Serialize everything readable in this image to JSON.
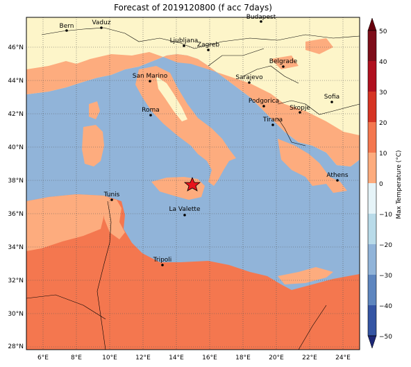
{
  "title": "Forecast of 2019120800 (f acc 7days)",
  "map": {
    "lon_ticks": [
      "6°E",
      "8°E",
      "10°E",
      "12°E",
      "14°E",
      "16°E",
      "18°E",
      "20°E",
      "22°E",
      "24°E"
    ],
    "lat_ticks": [
      "46°N",
      "44°N",
      "42°N",
      "40°N",
      "38°N",
      "36°N",
      "34°N",
      "32°N",
      "30°N",
      "28°N"
    ],
    "colors": {
      "sea": "#91b4d9",
      "land_0_10": "#fdf5c9",
      "land_10_20": "#fdac7e",
      "land_20_30": "#f4774f"
    },
    "cities": [
      {
        "name": "Bern"
      },
      {
        "name": "Vaduz"
      },
      {
        "name": "Budapest"
      },
      {
        "name": "Ljubljana"
      },
      {
        "name": "Zagreb"
      },
      {
        "name": "Belgrade"
      },
      {
        "name": "San Marino"
      },
      {
        "name": "Sarajevo"
      },
      {
        "name": "Sofia"
      },
      {
        "name": "Podgorica"
      },
      {
        "name": "Skopje"
      },
      {
        "name": "Roma"
      },
      {
        "name": "Tirana"
      },
      {
        "name": "Athens"
      },
      {
        "name": "Tunis"
      },
      {
        "name": "La Valette"
      },
      {
        "name": "Tripoli"
      }
    ],
    "marker": {
      "type": "star",
      "color": "#e8131b"
    }
  },
  "colorbar": {
    "label": "Max Temperature (°C)",
    "ticks": [
      "50",
      "40",
      "30",
      "20",
      "10",
      "0",
      "−10",
      "−20",
      "−30",
      "−40",
      "−50"
    ],
    "colors": [
      "#7e0d1a",
      "#b0101f",
      "#d63424",
      "#f4774f",
      "#fdac7e",
      "#fdf5c9",
      "#e6f4f8",
      "#b9dbe9",
      "#91b4d9",
      "#5e86bf",
      "#3555a4",
      "#1d2776"
    ]
  }
}
